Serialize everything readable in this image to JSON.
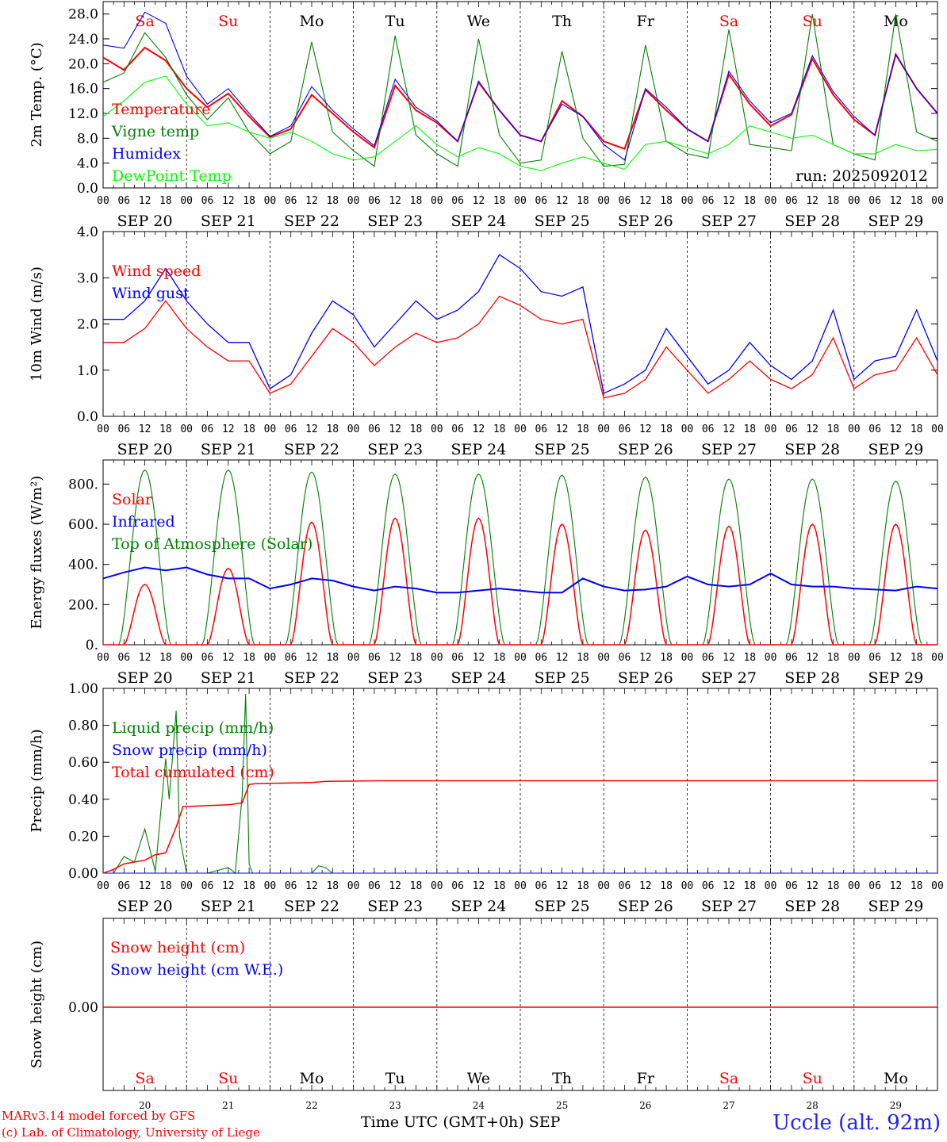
{
  "chart_data": [
    {
      "type": "line",
      "ylabel": "2m Temp. (°C)",
      "ylim": [
        0,
        30
      ],
      "yticks": [
        "0.0",
        "4.0",
        "8.0",
        "12.0",
        "16.0",
        "20.0",
        "24.0",
        "28.0"
      ],
      "legend": [
        {
          "label": "Temperature",
          "color": "#ff0000"
        },
        {
          "label": "Vigne temp",
          "color": "#008000"
        },
        {
          "label": "Humidex",
          "color": "#0000ff"
        },
        {
          "label": "DewPoint Temp",
          "color": "#00ff00"
        }
      ],
      "annotation": "run: 2025092012",
      "x_hours": [
        0,
        6,
        12,
        18,
        24,
        30,
        36,
        42,
        48,
        54,
        60,
        66,
        72,
        78,
        84,
        90,
        96,
        102,
        108,
        114,
        120,
        126,
        132,
        138,
        144,
        150,
        156,
        162,
        168,
        174,
        180,
        186,
        192,
        198,
        204,
        210,
        216,
        222,
        228,
        234,
        240
      ],
      "series": [
        {
          "name": "Temperature",
          "color": "#ff0000",
          "values": [
            21.0,
            19.0,
            22.6,
            20.5,
            16.0,
            13.0,
            15.2,
            11.5,
            8.2,
            9.5,
            15.0,
            12.0,
            9.0,
            6.5,
            16.5,
            12.5,
            10.5,
            7.5,
            17.0,
            12.5,
            8.5,
            7.5,
            14.0,
            11.5,
            7.5,
            6.3,
            15.8,
            12.5,
            9.5,
            7.5,
            18.3,
            13.5,
            10.0,
            11.8,
            20.8,
            15.0,
            11.0,
            8.5,
            21.5,
            16.0,
            12.0
          ]
        },
        {
          "name": "Vigne temp",
          "color": "#008000",
          "values": [
            17.0,
            18.5,
            25.0,
            21.0,
            15.0,
            11.0,
            14.5,
            9.0,
            5.5,
            7.5,
            23.5,
            9.0,
            6.0,
            3.5,
            24.5,
            8.5,
            5.5,
            3.5,
            24.0,
            8.5,
            4.0,
            4.5,
            22.0,
            8.0,
            3.5,
            3.8,
            23.0,
            7.5,
            5.5,
            4.8,
            25.5,
            7.0,
            6.5,
            6.0,
            28.0,
            7.0,
            5.5,
            4.5,
            28.0,
            9.0,
            7.5
          ]
        },
        {
          "name": "Humidex",
          "color": "#0000ff",
          "values": [
            23.0,
            22.5,
            28.3,
            26.5,
            18.0,
            13.5,
            16.0,
            12.0,
            8.3,
            10.0,
            16.3,
            12.5,
            9.5,
            6.8,
            17.5,
            13.0,
            10.8,
            7.5,
            17.2,
            12.5,
            8.5,
            7.5,
            13.5,
            11.5,
            7.0,
            4.5,
            16.0,
            13.0,
            9.5,
            7.5,
            18.8,
            14.0,
            10.5,
            12.0,
            21.3,
            15.5,
            11.5,
            8.5,
            21.5,
            16.0,
            12.0
          ]
        },
        {
          "name": "DewPoint Temp",
          "color": "#00ff00",
          "values": [
            11.5,
            14.0,
            17.0,
            18.0,
            13.5,
            10.0,
            10.5,
            9.0,
            8.0,
            9.0,
            7.5,
            5.5,
            4.5,
            5.0,
            7.5,
            10.0,
            7.0,
            5.0,
            6.5,
            5.5,
            3.5,
            2.8,
            4.0,
            5.0,
            4.0,
            3.0,
            7.0,
            7.5,
            6.5,
            5.5,
            7.0,
            10.0,
            9.0,
            8.0,
            8.5,
            7.0,
            5.5,
            5.5,
            7.0,
            6.0,
            6.2
          ]
        }
      ]
    },
    {
      "type": "line",
      "ylabel": "10m Wind (m/s)",
      "ylim": [
        0,
        4
      ],
      "yticks": [
        "0.0",
        "1.0",
        "2.0",
        "3.0",
        "4.0"
      ],
      "legend": [
        {
          "label": "Wind speed",
          "color": "#ff0000"
        },
        {
          "label": "Wind gust",
          "color": "#0000ff"
        }
      ],
      "x_hours": [
        0,
        6,
        12,
        18,
        24,
        30,
        36,
        42,
        48,
        54,
        60,
        66,
        72,
        78,
        84,
        90,
        96,
        102,
        108,
        114,
        120,
        126,
        132,
        138,
        144,
        150,
        156,
        162,
        168,
        174,
        180,
        186,
        192,
        198,
        204,
        210,
        216,
        222,
        228,
        234,
        240
      ],
      "series": [
        {
          "name": "Wind speed",
          "color": "#ff0000",
          "values": [
            1.6,
            1.6,
            1.9,
            2.5,
            1.9,
            1.5,
            1.2,
            1.2,
            0.5,
            0.7,
            1.3,
            1.9,
            1.6,
            1.1,
            1.5,
            1.8,
            1.6,
            1.7,
            2.0,
            2.6,
            2.4,
            2.1,
            2.0,
            2.1,
            0.4,
            0.5,
            0.8,
            1.5,
            1.0,
            0.5,
            0.8,
            1.2,
            0.8,
            0.6,
            0.9,
            1.7,
            0.6,
            0.9,
            1.0,
            1.7,
            0.9
          ]
        },
        {
          "name": "Wind gust",
          "color": "#0000ff",
          "values": [
            2.1,
            2.1,
            2.5,
            3.2,
            2.5,
            2.0,
            1.6,
            1.6,
            0.6,
            0.9,
            1.8,
            2.5,
            2.2,
            1.5,
            2.0,
            2.5,
            2.1,
            2.3,
            2.7,
            3.5,
            3.2,
            2.7,
            2.6,
            2.8,
            0.5,
            0.7,
            1.0,
            1.9,
            1.3,
            0.7,
            1.0,
            1.6,
            1.1,
            0.8,
            1.2,
            2.3,
            0.8,
            1.2,
            1.3,
            2.3,
            1.2
          ]
        }
      ]
    },
    {
      "type": "line",
      "ylabel": "Energy fluxes (W/m²)",
      "ylim": [
        0,
        920
      ],
      "yticks": [
        "0.",
        "200.",
        "400.",
        "600.",
        "800."
      ],
      "legend": [
        {
          "label": "Solar",
          "color": "#ff0000"
        },
        {
          "label": "Infrared",
          "color": "#0000ff"
        },
        {
          "label": "Top of Atmosphere (Solar)",
          "color": "#008000"
        }
      ],
      "solar_peaks": [
        300,
        380,
        610,
        630,
        630,
        600,
        570,
        590,
        600,
        600
      ],
      "toa_peaks": [
        870,
        870,
        860,
        850,
        850,
        845,
        835,
        825,
        825,
        815
      ],
      "infrared": {
        "x_hours": [
          0,
          6,
          12,
          18,
          24,
          30,
          36,
          42,
          48,
          54,
          60,
          66,
          72,
          78,
          84,
          90,
          96,
          102,
          108,
          114,
          120,
          126,
          132,
          138,
          144,
          150,
          156,
          162,
          168,
          174,
          180,
          186,
          192,
          198,
          204,
          210,
          216,
          222,
          228,
          234,
          240
        ],
        "values": [
          330,
          360,
          385,
          370,
          385,
          350,
          330,
          330,
          280,
          300,
          330,
          320,
          290,
          270,
          290,
          280,
          260,
          260,
          270,
          280,
          270,
          260,
          260,
          330,
          290,
          270,
          275,
          290,
          340,
          300,
          290,
          300,
          355,
          300,
          290,
          290,
          280,
          275,
          270,
          290,
          280
        ]
      }
    },
    {
      "type": "line",
      "ylabel": "Precip (mm/h)",
      "ylim": [
        0,
        1.0
      ],
      "yticks": [
        "0.00",
        "0.20",
        "0.40",
        "0.60",
        "0.80",
        "1.00"
      ],
      "legend": [
        {
          "label": "Liquid precip (mm/h)",
          "color": "#008000"
        },
        {
          "label": "Snow precip (mm/h)",
          "color": "#0000ff"
        },
        {
          "label": "Total cumulated (cm)",
          "color": "#ff0000"
        }
      ],
      "liquid": {
        "x_hours": [
          0,
          3,
          6,
          9,
          12,
          15,
          18,
          19,
          21,
          22,
          24,
          26,
          30,
          36,
          38,
          40,
          41,
          42,
          43,
          45,
          48,
          60,
          62,
          64,
          66,
          80,
          240
        ],
        "values": [
          0,
          0,
          0.09,
          0.06,
          0.24,
          0.01,
          0.62,
          0.4,
          0.88,
          0.2,
          0,
          0,
          0,
          0.03,
          0,
          0.42,
          0.97,
          0.05,
          0,
          0,
          0,
          0,
          0.04,
          0.03,
          0,
          0,
          0
        ]
      },
      "cumulated": {
        "x_hours": [
          0,
          3,
          6,
          9,
          12,
          15,
          18,
          21,
          23,
          36,
          40,
          42,
          44,
          60,
          64,
          80,
          240
        ],
        "values": [
          0,
          0.02,
          0.05,
          0.06,
          0.07,
          0.1,
          0.11,
          0.25,
          0.36,
          0.37,
          0.38,
          0.48,
          0.485,
          0.49,
          0.497,
          0.5,
          0.5
        ]
      }
    },
    {
      "type": "line",
      "ylabel": "Snow height (cm)",
      "ytick": "0.00",
      "legend": [
        {
          "label": "Snow height (cm)",
          "color": "#ff0000"
        },
        {
          "label": "Snow height (cm W.E.)",
          "color": "#0000ff"
        }
      ],
      "values": [
        0,
        0
      ]
    }
  ],
  "time_axis": {
    "hour_labels": [
      "00",
      "06",
      "12",
      "18"
    ],
    "final_label": "00",
    "date_labels": [
      "SEP 20",
      "SEP 21",
      "SEP 22",
      "SEP 23",
      "SEP 24",
      "SEP 25",
      "SEP 26",
      "SEP 27",
      "SEP 28",
      "SEP 29"
    ],
    "weekdays": [
      "Sa",
      "Su",
      "Mo",
      "Tu",
      "We",
      "Th",
      "Fr",
      "Sa",
      "Su",
      "Mo"
    ],
    "weekday_colors": [
      "#ff0000",
      "#ff0000",
      "#000000",
      "#000000",
      "#000000",
      "#000000",
      "#000000",
      "#ff0000",
      "#ff0000",
      "#000000"
    ],
    "day_numbers": [
      "20",
      "21",
      "22",
      "23",
      "24",
      "25",
      "26",
      "27",
      "28",
      "29"
    ]
  },
  "footer": {
    "credit_line1": "MARv3.14 model forced by GFS",
    "credit_line2": "(c) Lab. of Climatology, University of Liege",
    "time_label": "Time UTC (GMT+0h) SEP",
    "station": "Uccle (alt. 92m)"
  }
}
